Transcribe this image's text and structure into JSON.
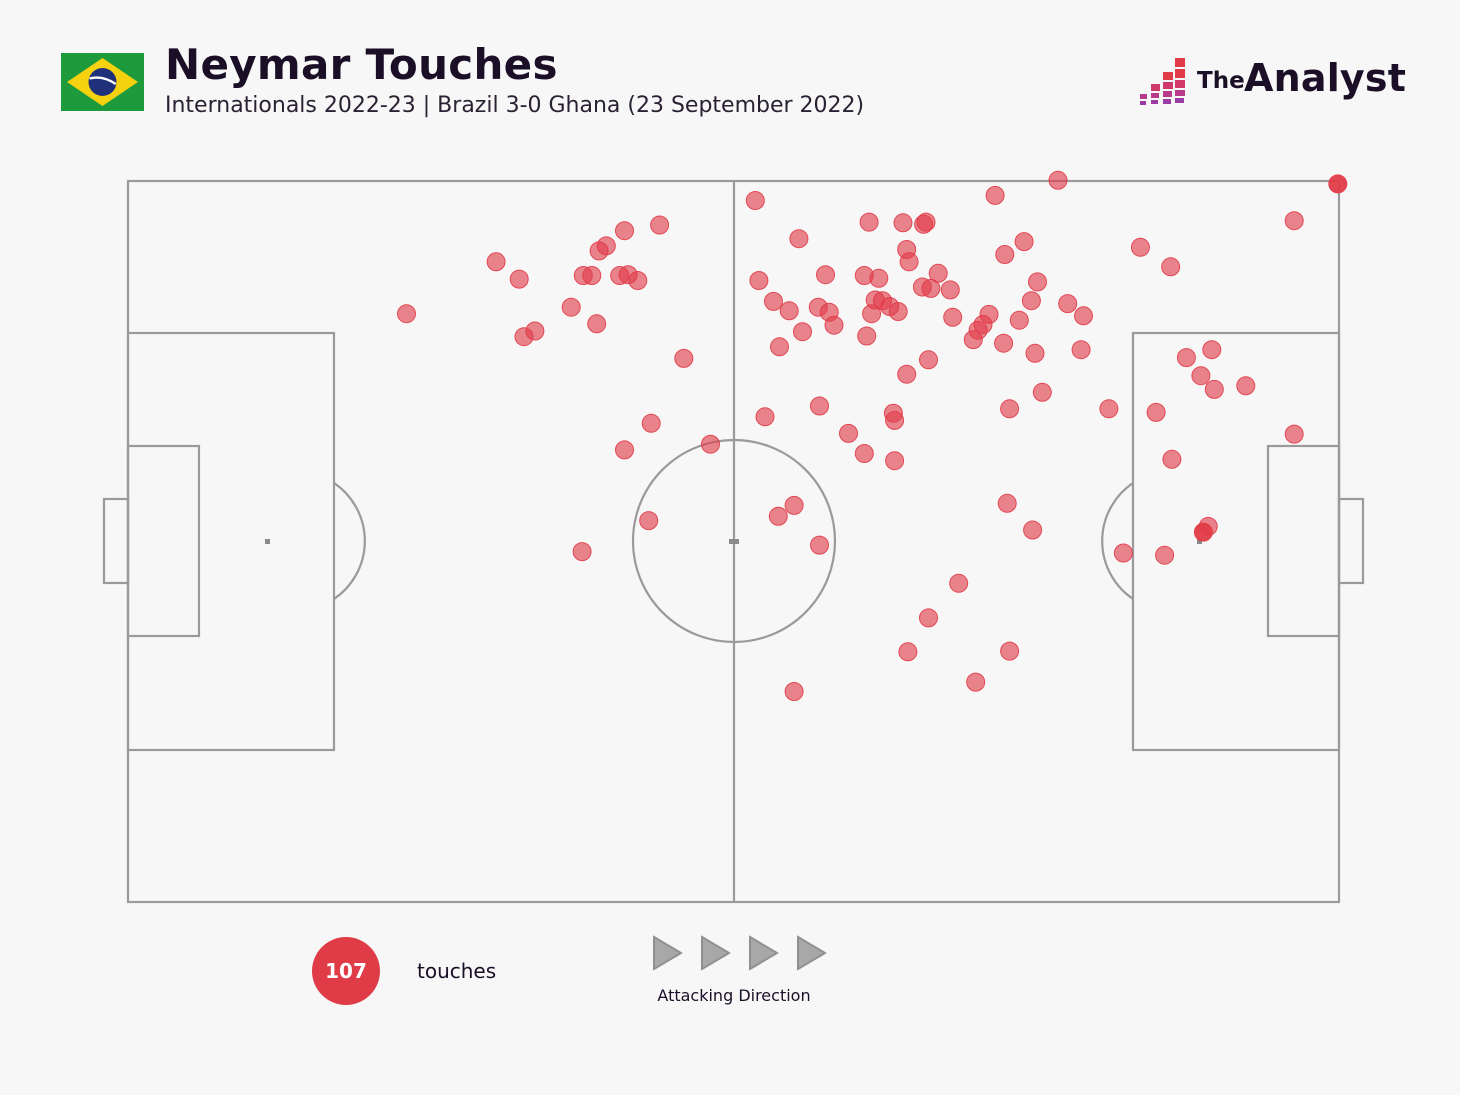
{
  "header": {
    "title": "Neymar Touches",
    "subtitle": "Internationals 2022-23 | Brazil 3-0 Ghana (23 September 2022)",
    "flag_icon": "brazil-flag-icon"
  },
  "brand": {
    "the": "The",
    "name": "Analyst",
    "icon": "analyst-logo-icon"
  },
  "legend": {
    "count": "107",
    "count_label": "touches",
    "direction_label": "Attacking Direction",
    "direction_icon": "play-arrow-icon"
  },
  "colors": {
    "touch": "#e03c48",
    "pitch_line": "#9a9a9a",
    "background": "#f7f7f7"
  },
  "chart_data": {
    "type": "scatter",
    "title": "Neymar Touches",
    "subtitle": "Internationals 2022-23 | Brazil 3-0 Ghana (23 September 2022)",
    "xlim": [
      0,
      100
    ],
    "ylim": [
      0,
      100
    ],
    "total": 107,
    "series": [
      {
        "name": "touches",
        "points": [
          {
            "x": 23.0,
            "y": 81.6
          },
          {
            "x": 30.4,
            "y": 88.8
          },
          {
            "x": 32.3,
            "y": 86.4
          },
          {
            "x": 32.7,
            "y": 78.4
          },
          {
            "x": 33.6,
            "y": 79.2
          },
          {
            "x": 36.6,
            "y": 82.5
          },
          {
            "x": 37.6,
            "y": 86.9
          },
          {
            "x": 38.3,
            "y": 86.9
          },
          {
            "x": 38.7,
            "y": 80.2
          },
          {
            "x": 38.9,
            "y": 90.3
          },
          {
            "x": 39.5,
            "y": 91.0
          },
          {
            "x": 40.6,
            "y": 86.9
          },
          {
            "x": 41.0,
            "y": 93.1
          },
          {
            "x": 41.3,
            "y": 87.0
          },
          {
            "x": 42.1,
            "y": 86.2
          },
          {
            "x": 43.9,
            "y": 93.9
          },
          {
            "x": 45.9,
            "y": 75.4
          },
          {
            "x": 37.5,
            "y": 48.6
          },
          {
            "x": 41.0,
            "y": 62.7
          },
          {
            "x": 43.0,
            "y": 52.9
          },
          {
            "x": 43.2,
            "y": 66.4
          },
          {
            "x": 48.1,
            "y": 63.5
          },
          {
            "x": 51.8,
            "y": 97.3
          },
          {
            "x": 52.1,
            "y": 86.2
          },
          {
            "x": 53.3,
            "y": 83.3
          },
          {
            "x": 53.8,
            "y": 77.0
          },
          {
            "x": 54.6,
            "y": 82.0
          },
          {
            "x": 55.4,
            "y": 92.0
          },
          {
            "x": 55.7,
            "y": 79.1
          },
          {
            "x": 57.0,
            "y": 82.5
          },
          {
            "x": 57.6,
            "y": 87.0
          },
          {
            "x": 57.9,
            "y": 81.8
          },
          {
            "x": 58.3,
            "y": 80.0
          },
          {
            "x": 60.8,
            "y": 86.9
          },
          {
            "x": 61.0,
            "y": 78.5
          },
          {
            "x": 61.2,
            "y": 94.3
          },
          {
            "x": 61.4,
            "y": 81.6
          },
          {
            "x": 61.7,
            "y": 83.5
          },
          {
            "x": 62.0,
            "y": 86.5
          },
          {
            "x": 62.3,
            "y": 83.4
          },
          {
            "x": 62.9,
            "y": 82.6
          },
          {
            "x": 63.6,
            "y": 81.9
          },
          {
            "x": 64.0,
            "y": 94.2
          },
          {
            "x": 64.3,
            "y": 90.5
          },
          {
            "x": 64.5,
            "y": 88.8
          },
          {
            "x": 65.7,
            "y": 94.0
          },
          {
            "x": 65.9,
            "y": 94.3
          },
          {
            "x": 65.6,
            "y": 85.3
          },
          {
            "x": 66.3,
            "y": 85.1
          },
          {
            "x": 66.9,
            "y": 87.2
          },
          {
            "x": 67.9,
            "y": 84.9
          },
          {
            "x": 68.1,
            "y": 81.1
          },
          {
            "x": 69.8,
            "y": 78.0
          },
          {
            "x": 70.2,
            "y": 79.3
          },
          {
            "x": 70.6,
            "y": 80.1
          },
          {
            "x": 71.1,
            "y": 81.5
          },
          {
            "x": 71.6,
            "y": 98.0
          },
          {
            "x": 72.3,
            "y": 77.5
          },
          {
            "x": 72.4,
            "y": 89.8
          },
          {
            "x": 73.6,
            "y": 80.7
          },
          {
            "x": 74.6,
            "y": 83.4
          },
          {
            "x": 74.9,
            "y": 76.1
          },
          {
            "x": 74.0,
            "y": 91.6
          },
          {
            "x": 75.1,
            "y": 86.0
          },
          {
            "x": 76.8,
            "y": 100.1
          },
          {
            "x": 77.6,
            "y": 83.0
          },
          {
            "x": 78.9,
            "y": 81.3
          },
          {
            "x": 78.7,
            "y": 76.6
          },
          {
            "x": 64.3,
            "y": 73.2
          },
          {
            "x": 66.1,
            "y": 75.2
          },
          {
            "x": 52.6,
            "y": 67.3
          },
          {
            "x": 57.1,
            "y": 68.8
          },
          {
            "x": 59.5,
            "y": 65.0
          },
          {
            "x": 60.8,
            "y": 62.2
          },
          {
            "x": 63.2,
            "y": 67.8
          },
          {
            "x": 63.3,
            "y": 66.8
          },
          {
            "x": 63.3,
            "y": 61.2
          },
          {
            "x": 72.8,
            "y": 68.4
          },
          {
            "x": 75.5,
            "y": 70.7
          },
          {
            "x": 81.0,
            "y": 68.4
          },
          {
            "x": 53.7,
            "y": 53.5
          },
          {
            "x": 55.0,
            "y": 55.0
          },
          {
            "x": 57.1,
            "y": 49.5
          },
          {
            "x": 72.6,
            "y": 55.3
          },
          {
            "x": 74.7,
            "y": 51.6
          },
          {
            "x": 68.6,
            "y": 44.2
          },
          {
            "x": 66.1,
            "y": 39.4
          },
          {
            "x": 64.4,
            "y": 34.7
          },
          {
            "x": 72.8,
            "y": 34.8
          },
          {
            "x": 70.0,
            "y": 30.5
          },
          {
            "x": 55.0,
            "y": 29.2
          },
          {
            "x": 83.6,
            "y": 90.8
          },
          {
            "x": 86.1,
            "y": 88.1
          },
          {
            "x": 96.3,
            "y": 94.5
          },
          {
            "x": 99.9,
            "y": 99.6
          },
          {
            "x": 87.4,
            "y": 75.5
          },
          {
            "x": 89.5,
            "y": 76.6
          },
          {
            "x": 88.6,
            "y": 73.0
          },
          {
            "x": 89.7,
            "y": 71.1
          },
          {
            "x": 92.3,
            "y": 71.6
          },
          {
            "x": 84.9,
            "y": 67.9
          },
          {
            "x": 86.2,
            "y": 61.4
          },
          {
            "x": 96.3,
            "y": 64.9
          },
          {
            "x": 89.2,
            "y": 52.1
          },
          {
            "x": 82.2,
            "y": 48.4
          },
          {
            "x": 85.6,
            "y": 48.1
          },
          {
            "x": 88.8,
            "y": 51.3
          }
        ]
      }
    ],
    "attacking_direction": "left-to-right"
  }
}
